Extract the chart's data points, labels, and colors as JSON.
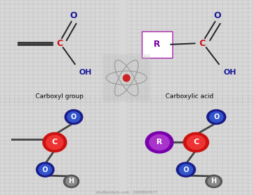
{
  "bg_color": "#d8d8d8",
  "grid_color": "#bbbbbb",
  "title1": "Carboxyl group",
  "title2": "Carboxylic acid",
  "bond_color": "#222222",
  "C_color_dark": "#cc1111",
  "C_color_light": "#ee3333",
  "O_color_dark": "#1a1a88",
  "O_color_light": "#3355cc",
  "H_color_dark": "#555555",
  "H_color_light": "#888888",
  "R_color_dark": "#7700aa",
  "R_color_light": "#aa33cc",
  "R_box_color": "#aa22aa",
  "O_text_color": "#1a1a99",
  "C_text_color": "#cc1111",
  "grid_step": 0.04,
  "atom_icon_orbit_color": "#aaaaaa",
  "atom_icon_nucleus_color": "#cc2222",
  "shutterstock_text": "shutterstock.com · 2000824577"
}
